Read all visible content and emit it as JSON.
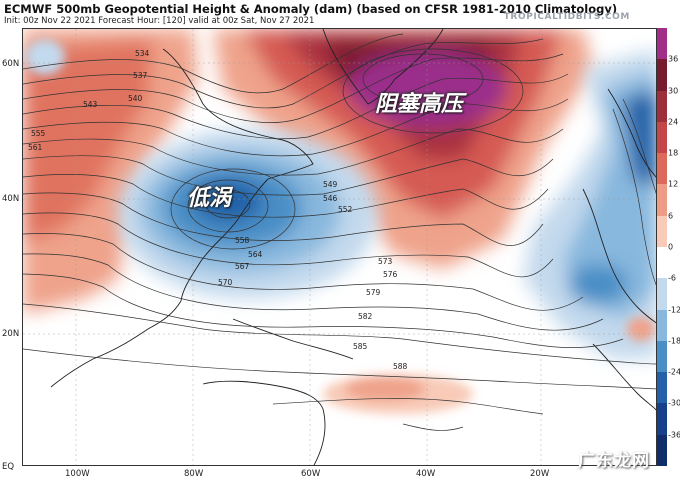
{
  "header": {
    "title": "ECMWF 500mb Geopotential Height & Anomaly (dam) (based on CFSR 1981-2010 Climatology)",
    "subtitle": "Init: 00z Nov 22 2021    Forecast Hour: [120]    valid at 00z Sat, Nov 27 2021",
    "brand": "TROPICALTIDBITS.COM"
  },
  "map": {
    "lat_labels": [
      "60N",
      "40N",
      "20N",
      "EQ"
    ],
    "lon_labels": [
      "100W",
      "80W",
      "60W",
      "40W",
      "20W"
    ],
    "contour_labels": [
      "534",
      "537",
      "540",
      "543",
      "546",
      "549",
      "552",
      "555",
      "558",
      "561",
      "564",
      "567",
      "570",
      "573",
      "576",
      "579",
      "582",
      "585",
      "588"
    ],
    "annotations": {
      "high": "阻塞高压",
      "low": "低涡"
    }
  },
  "colorbar": {
    "ticks": [
      "36",
      "30",
      "24",
      "18",
      "12",
      "6",
      "0",
      "-6",
      "-12",
      "-18",
      "-24",
      "-30",
      "-36"
    ],
    "colors": [
      "#a12e89",
      "#771c2e",
      "#9d2f3b",
      "#c4464a",
      "#dd6b5c",
      "#ef9c86",
      "#f8cab7",
      "#ffffff",
      "#c3d9ed",
      "#88b8de",
      "#4a8ec6",
      "#2362a8",
      "#16418a",
      "#0f2c6b"
    ]
  },
  "watermark": "广东龙网"
}
